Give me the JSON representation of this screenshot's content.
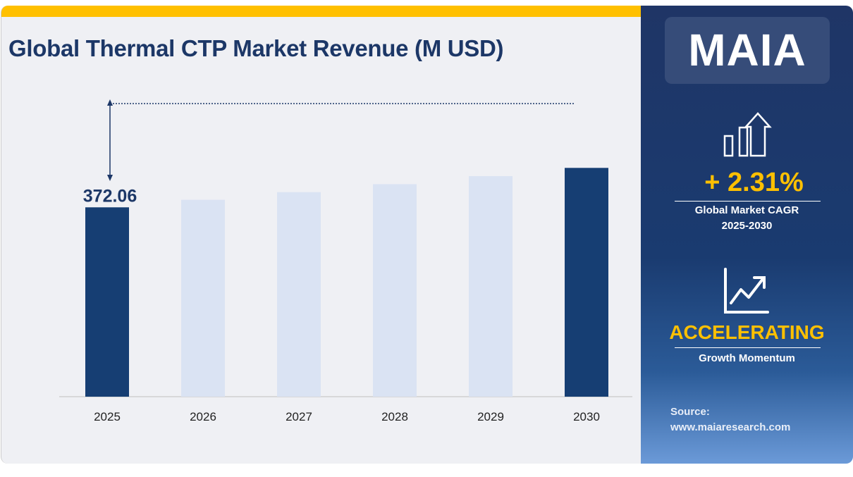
{
  "chart_data": {
    "type": "bar",
    "title": "Global Thermal CTP Market Revenue (M USD)",
    "categories": [
      "2025",
      "2026",
      "2027",
      "2028",
      "2029",
      "2030"
    ],
    "values": [
      372.06,
      380.65,
      389.44,
      398.44,
      407.64,
      417.06
    ],
    "data_labels": {
      "2025": "372.06"
    },
    "highlighted": [
      "2025",
      "2030"
    ],
    "colors": {
      "highlight": "#163e73",
      "normal": "#dae3f3",
      "accent": "#ffc000"
    },
    "ylim": [
      156,
      480
    ],
    "grid": false
  },
  "sidebar": {
    "logo": "MAIA",
    "cagr_value": "+ 2.31%",
    "cagr_label": "Global Market CAGR",
    "cagr_period": "2025-2030",
    "momentum_value": "ACCELERATING",
    "momentum_label": "Growth Momentum",
    "source_label": "Source:",
    "source_url": "www.maiaresearch.com",
    "icons": [
      "bar-chart-up-arrow-icon",
      "trend-line-icon"
    ]
  }
}
